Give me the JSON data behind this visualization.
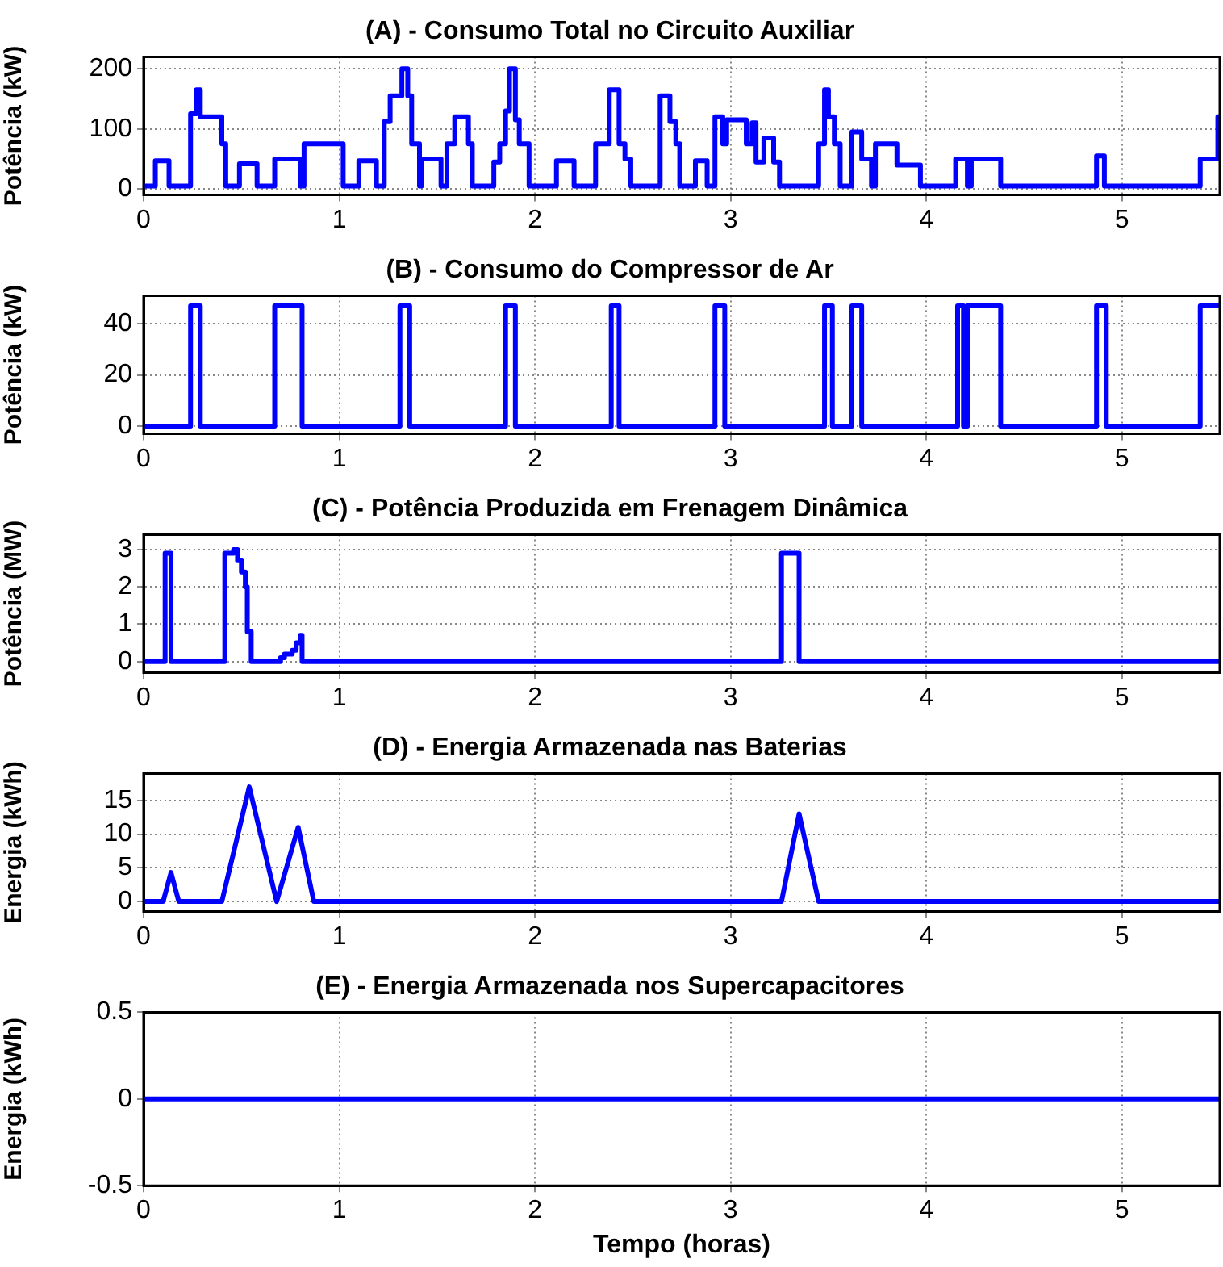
{
  "chart_data": [
    {
      "type": "step",
      "title": "(A) - Consumo Total no Circuito Auxiliar",
      "ylabel": "Potência (kW)",
      "color": "#0000ff",
      "marker": "none",
      "grid": true,
      "x": [
        0,
        0.06,
        0.13,
        0.24,
        0.27,
        0.29,
        0.4,
        0.42,
        0.49,
        0.58,
        0.67,
        0.8,
        0.82,
        1.02,
        1.1,
        1.19,
        1.23,
        1.26,
        1.32,
        1.35,
        1.37,
        1.41,
        1.42,
        1.52,
        1.55,
        1.59,
        1.66,
        1.68,
        1.79,
        1.82,
        1.85,
        1.87,
        1.9,
        1.92,
        1.97,
        2.11,
        2.2,
        2.31,
        2.38,
        2.43,
        2.46,
        2.49,
        2.64,
        2.69,
        2.72,
        2.74,
        2.82,
        2.88,
        2.92,
        2.96,
        2.98,
        3.08,
        3.11,
        3.13,
        3.17,
        3.22,
        3.25,
        3.45,
        3.48,
        3.5,
        3.53,
        3.56,
        3.62,
        3.67,
        3.72,
        3.74,
        3.85,
        3.97,
        4.15,
        4.21,
        4.23,
        4.38,
        4.87,
        4.91,
        5.4,
        5.49,
        5.5
      ],
      "values": [
        5,
        47,
        5,
        125,
        165,
        120,
        75,
        5,
        42,
        5,
        50,
        5,
        75,
        5,
        47,
        5,
        112,
        155,
        200,
        155,
        75,
        5,
        50,
        5,
        75,
        120,
        75,
        5,
        45,
        75,
        130,
        200,
        115,
        75,
        5,
        47,
        5,
        75,
        165,
        75,
        50,
        5,
        155,
        112,
        75,
        5,
        47,
        5,
        120,
        75,
        115,
        75,
        110,
        45,
        85,
        45,
        5,
        75,
        165,
        120,
        75,
        5,
        95,
        50,
        5,
        75,
        40,
        5,
        50,
        5,
        50,
        5,
        55,
        5,
        50,
        120,
        120
      ],
      "xlim": [
        0,
        5.5
      ],
      "xticks": [
        0,
        1,
        2,
        3,
        4,
        5
      ],
      "ylim": [
        -10,
        220
      ],
      "yticks": [
        0,
        100,
        200
      ]
    },
    {
      "type": "step",
      "title": "(B) - Consumo do Compressor de Ar",
      "ylabel": "Potência (kW)",
      "color": "#0000ff",
      "marker": "none",
      "grid": true,
      "x": [
        0,
        0.24,
        0.29,
        0.67,
        0.81,
        1.31,
        1.36,
        1.85,
        1.9,
        2.39,
        2.43,
        2.92,
        2.97,
        3.48,
        3.52,
        3.62,
        3.67,
        4.16,
        4.19,
        4.21,
        4.38,
        4.87,
        4.92,
        5.4,
        5.5
      ],
      "values": [
        0,
        47,
        0,
        47,
        0,
        47,
        0,
        47,
        0,
        47,
        0,
        47,
        0,
        47,
        0,
        47,
        0,
        47,
        0,
        47,
        0,
        47,
        0,
        47,
        47
      ],
      "xlim": [
        0,
        5.5
      ],
      "xticks": [
        0,
        1,
        2,
        3,
        4,
        5
      ],
      "ylim": [
        -3,
        51
      ],
      "yticks": [
        0,
        20,
        40
      ]
    },
    {
      "type": "step",
      "title": "(C) - Potência Produzida em Frenagem Dinâmica",
      "ylabel": "Potência (MW)",
      "color": "#0000ff",
      "marker": "none",
      "grid": true,
      "x": [
        0,
        0.11,
        0.14,
        0.415,
        0.46,
        0.48,
        0.5,
        0.52,
        0.53,
        0.55,
        0.7,
        0.72,
        0.76,
        0.78,
        0.8,
        0.81,
        3.26,
        3.35,
        5.5
      ],
      "values": [
        0,
        2.9,
        0,
        2.9,
        3.0,
        2.7,
        2.4,
        2.0,
        0.8,
        0,
        0.1,
        0.2,
        0.3,
        0.5,
        0.7,
        0,
        2.9,
        0,
        0
      ],
      "xlim": [
        0,
        5.5
      ],
      "xticks": [
        0,
        1,
        2,
        3,
        4,
        5
      ],
      "ylim": [
        -0.3,
        3.4
      ],
      "yticks": [
        0,
        1,
        2,
        3
      ]
    },
    {
      "type": "line",
      "title": "(D) - Energia Armazenada nas Baterias",
      "ylabel": "Energia (kWh)",
      "color": "#0000ff",
      "marker": "none",
      "grid": true,
      "x": [
        0,
        0.1,
        0.14,
        0.18,
        0.4,
        0.54,
        0.68,
        0.79,
        0.87,
        3.26,
        3.35,
        3.45,
        5.5
      ],
      "values": [
        0,
        0,
        4.3,
        0,
        0,
        17,
        0,
        11,
        0,
        0,
        13,
        0,
        0
      ],
      "xlim": [
        0,
        5.5
      ],
      "xticks": [
        0,
        1,
        2,
        3,
        4,
        5
      ],
      "ylim": [
        -1.5,
        19
      ],
      "yticks": [
        0,
        5,
        10,
        15
      ]
    },
    {
      "type": "line",
      "title": "(E) - Energia Armazenada nos Supercapacitores",
      "ylabel": "Energia (kWh)",
      "xlabel": "Tempo (horas)",
      "color": "#0000ff",
      "marker": "none",
      "grid": true,
      "x": [
        0,
        5.5
      ],
      "values": [
        0,
        0
      ],
      "xlim": [
        0,
        5.5
      ],
      "xticks": [
        0,
        1,
        2,
        3,
        4,
        5
      ],
      "ylim": [
        -0.5,
        0.5
      ],
      "yticks": [
        -0.5,
        0,
        0.5
      ]
    }
  ]
}
